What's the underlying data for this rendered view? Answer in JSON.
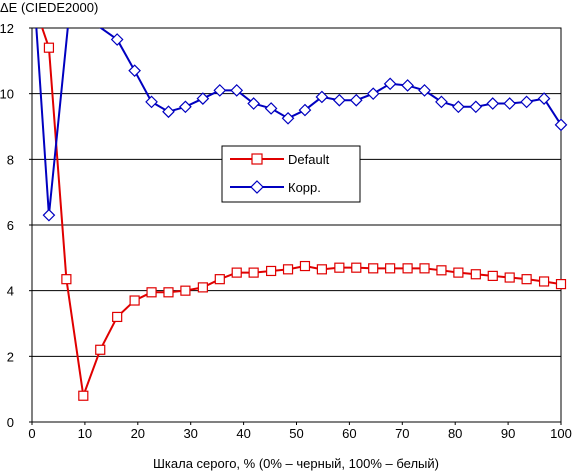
{
  "chart_data": {
    "type": "line",
    "title": "",
    "ylabel": "ΔE (CIEDE2000)",
    "xlabel": "Шкала серого, % (0% – черный, 100% – белый)",
    "xlim": [
      0,
      100
    ],
    "ylim": [
      0,
      12
    ],
    "xticks": [
      "0",
      "10",
      "20",
      "30",
      "40",
      "50",
      "60",
      "70",
      "80",
      "90",
      "100"
    ],
    "yticks": [
      "0",
      "2",
      "4",
      "6",
      "8",
      "10",
      "12"
    ],
    "grid": "horizontal",
    "legend_position": "center",
    "series": [
      {
        "name": "Default",
        "color": "#e00000",
        "marker": "square",
        "x": [
          3.2,
          6.5,
          9.7,
          12.9,
          16.1,
          19.4,
          22.6,
          25.8,
          29.0,
          32.3,
          35.5,
          38.7,
          41.9,
          45.2,
          48.4,
          51.6,
          54.8,
          58.1,
          61.3,
          64.5,
          67.7,
          71.0,
          74.2,
          77.4,
          80.6,
          83.9,
          87.1,
          90.3,
          93.5,
          96.8,
          100
        ],
        "y": [
          11.4,
          4.35,
          0.8,
          2.2,
          3.2,
          3.7,
          3.95,
          3.95,
          4.0,
          4.1,
          4.35,
          4.55,
          4.55,
          4.6,
          4.65,
          4.75,
          4.65,
          4.7,
          4.7,
          4.68,
          4.68,
          4.68,
          4.68,
          4.62,
          4.55,
          4.5,
          4.45,
          4.4,
          4.35,
          4.28,
          4.2
        ]
      },
      {
        "name": "Корр.",
        "color": "#0000c0",
        "marker": "diamond",
        "x": [
          3.2,
          16.1,
          19.4,
          22.6,
          25.8,
          29.0,
          32.3,
          35.5,
          38.7,
          41.9,
          45.2,
          48.4,
          51.6,
          54.8,
          58.1,
          61.3,
          64.5,
          67.7,
          71.0,
          74.2,
          77.4,
          80.6,
          83.9,
          87.1,
          90.3,
          93.5,
          96.8,
          100
        ],
        "y": [
          6.3,
          11.65,
          10.7,
          9.75,
          9.45,
          9.6,
          9.85,
          10.1,
          10.1,
          9.7,
          9.55,
          9.25,
          9.5,
          9.9,
          9.8,
          9.8,
          10.0,
          10.3,
          10.25,
          10.1,
          9.75,
          9.6,
          9.6,
          9.7,
          9.7,
          9.75,
          9.85,
          9.05
        ]
      }
    ]
  }
}
